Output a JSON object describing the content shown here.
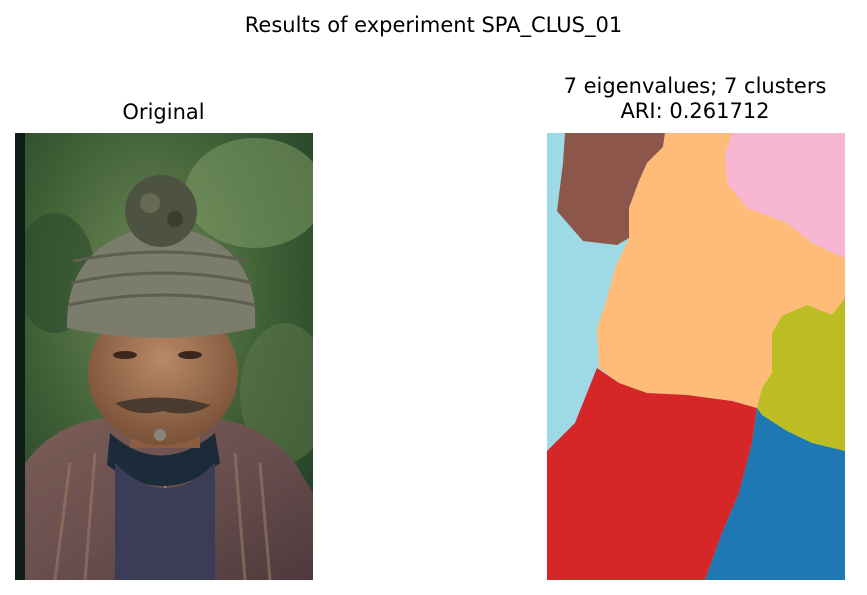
{
  "figure": {
    "suptitle": "Results of experiment SPA_CLUS_01"
  },
  "panels": {
    "original": {
      "title": "Original",
      "content": "photo-portrait"
    },
    "segmentation": {
      "title_line1": "7 eigenvalues; 7 clusters",
      "title_line2": "ARI: 0.261712",
      "cluster_colors": {
        "sky_blue": "#9edae5",
        "brown": "#8c564b",
        "pink": "#f7b6d2",
        "orange": "#ffbb78",
        "olive": "#bcbd22",
        "red": "#d62728",
        "blue": "#1f77b4"
      }
    }
  }
}
